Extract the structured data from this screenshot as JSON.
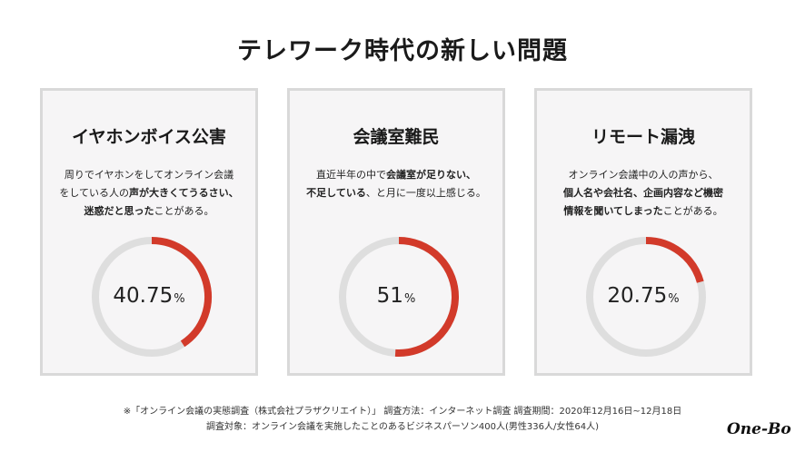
{
  "title": "テレワーク時代の新しい問題",
  "cards": [
    {
      "title": "イヤホンボイス公害",
      "desc": [
        [
          {
            "t": "周りでイヤホンをしてオンライン会議",
            "b": false
          }
        ],
        [
          {
            "t": "をしている人の",
            "b": false
          },
          {
            "t": "声が大きくてうるさい、",
            "b": true
          }
        ],
        [
          {
            "t": "迷惑だと思った",
            "b": true
          },
          {
            "t": "ことがある。",
            "b": false
          }
        ]
      ],
      "value": "40.75",
      "unit": "%"
    },
    {
      "title": "会議室難民",
      "desc": [
        [
          {
            "t": "直近半年の中で",
            "b": false
          },
          {
            "t": "会議室が足りない、",
            "b": true
          }
        ],
        [
          {
            "t": "不足している",
            "b": true
          },
          {
            "t": "、と月に一度以上感じる。",
            "b": false
          }
        ]
      ],
      "value": "51",
      "unit": "%"
    },
    {
      "title": "リモート漏洩",
      "desc": [
        [
          {
            "t": "オンライン会議中の人の声から、",
            "b": false
          }
        ],
        [
          {
            "t": "個人名や会社名、企画内容など機密",
            "b": true
          }
        ],
        [
          {
            "t": "情報を聞いてしまった",
            "b": true
          },
          {
            "t": "ことがある。",
            "b": false
          }
        ]
      ],
      "value": "20.75",
      "unit": "%"
    }
  ],
  "chart_data": [
    {
      "type": "pie",
      "title": "イヤホンボイス公害",
      "values": [
        40.75,
        59.25
      ],
      "unit": "%"
    },
    {
      "type": "pie",
      "title": "会議室難民",
      "values": [
        51,
        49
      ],
      "unit": "%"
    },
    {
      "type": "pie",
      "title": "リモート漏洩",
      "values": [
        20.75,
        79.25
      ],
      "unit": "%"
    }
  ],
  "colors": {
    "accent": "#d23a2a",
    "track": "#dedede"
  },
  "footnote1": "※「オンライン会議の実態調査（株式会社プラザクリエイト）」 調査方法：インターネット調査 調査期間：2020年12月16日~12月18日",
  "footnote2": "調査対象：オンライン会議を実施したことのあるビジネスパーソン400人(男性336人/女性64人)",
  "logo": "One-Bo"
}
